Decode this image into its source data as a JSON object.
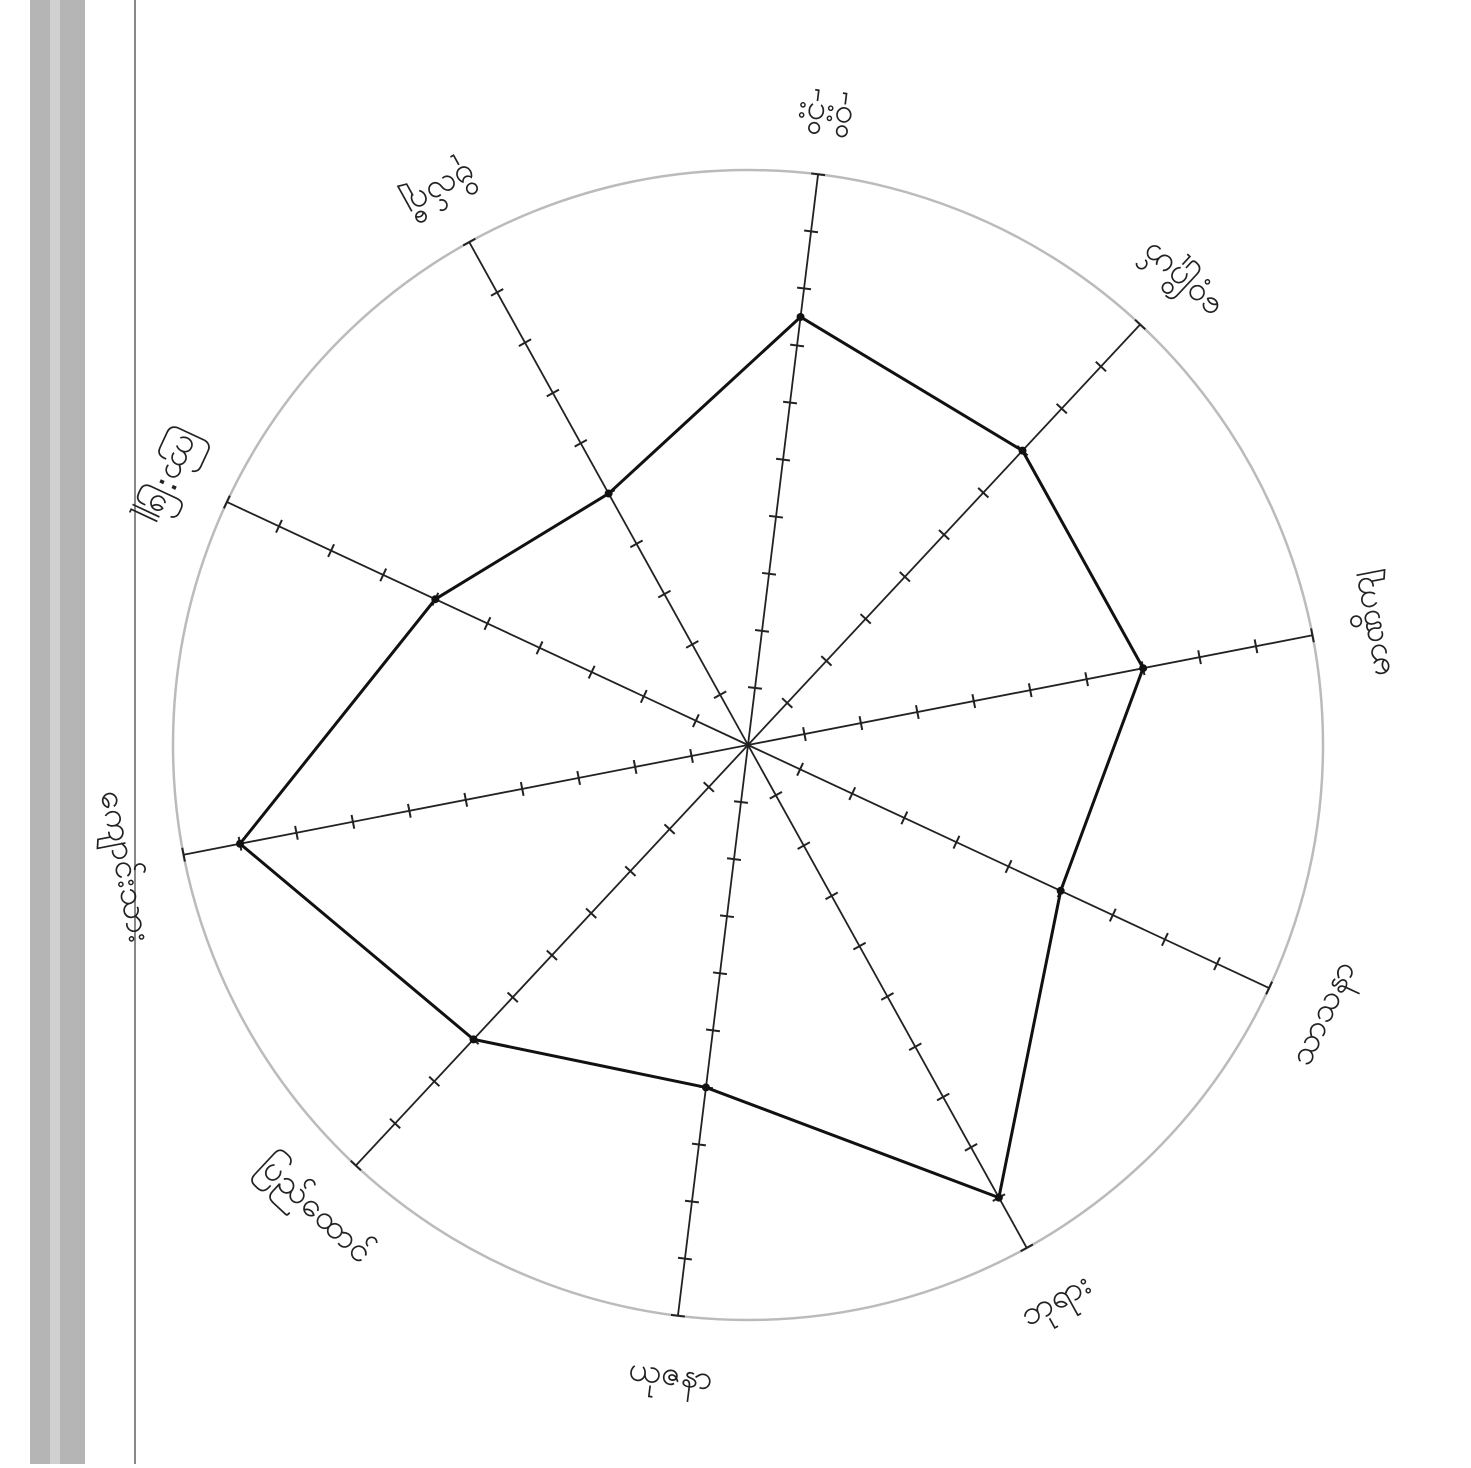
{
  "chart_data": {
    "type": "radar",
    "categories": [
      "ဝိုးဂိုး",
      "ဝေ့ဂြိုဟ်",
      "မာဏိကျ",
      "သာသနာ",
      "ဘုရား",
      "ယုဇနာ",
      "ပြည်ထောင်",
      "ကျောင်းသား",
      "ကြာ:ဖြူ",
      "ဗိုလ်ဂျီ"
    ],
    "values": [
      7.5,
      7,
      7,
      6,
      9,
      6,
      7,
      9,
      6,
      5
    ],
    "rlim": [
      0,
      10
    ],
    "rticks": [
      1,
      2,
      3,
      4,
      5,
      6,
      7,
      8,
      9,
      10
    ],
    "color": "#111111"
  }
}
